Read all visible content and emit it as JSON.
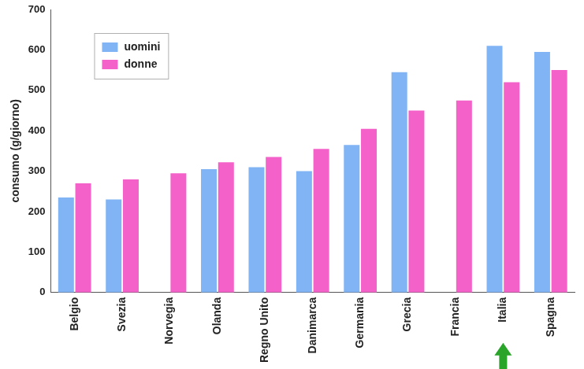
{
  "chart_data": {
    "type": "bar",
    "y_label": "consumo (g/giorno)",
    "categories": [
      "Belgio",
      "Svezia",
      "Norvegia",
      "Olanda",
      "Regno Unito",
      "Danimarca",
      "Germania",
      "Grecia",
      "Francia",
      "Italia",
      "Spagna"
    ],
    "series": [
      {
        "name": "uomini",
        "color": "#80b4f4",
        "values": [
          235,
          230,
          null,
          305,
          310,
          300,
          365,
          545,
          null,
          610,
          595
        ]
      },
      {
        "name": "donne",
        "color": "#f462c9",
        "values": [
          270,
          280,
          295,
          322,
          335,
          355,
          405,
          450,
          475,
          520,
          550
        ]
      }
    ],
    "ylim": [
      0,
      700
    ],
    "yticks": [
      0,
      100,
      200,
      300,
      400,
      500,
      600,
      700
    ],
    "grid": false,
    "legend": "top-left"
  }
}
